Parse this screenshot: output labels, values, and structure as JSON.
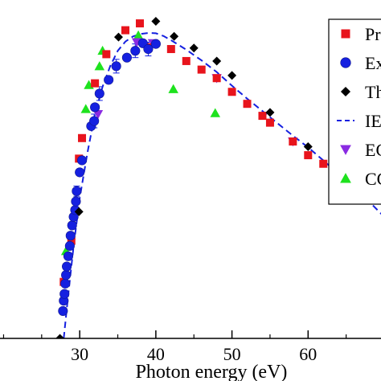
{
  "chart_data": {
    "type": "scatter",
    "xlabel": "Photon energy (eV)",
    "xlim": [
      19,
      70
    ],
    "ylim": [
      0,
      1.0
    ],
    "x_ticks": [
      30,
      40,
      50,
      60
    ],
    "grid": false,
    "legend_placement": "top-right",
    "series": [
      {
        "name": "Pr",
        "marker": "square",
        "color": "#e8141c",
        "points": [
          [
            27.9,
            0.165
          ],
          [
            28.9,
            0.285
          ],
          [
            29.9,
            0.525
          ],
          [
            30.3,
            0.585
          ],
          [
            32.0,
            0.745
          ],
          [
            33.5,
            0.83
          ],
          [
            36.0,
            0.9
          ],
          [
            37.9,
            0.92
          ],
          [
            39.0,
            0.85
          ],
          [
            42.0,
            0.845
          ],
          [
            44.0,
            0.81
          ],
          [
            46.0,
            0.785
          ],
          [
            48.0,
            0.76
          ],
          [
            50.0,
            0.72
          ],
          [
            52.0,
            0.685
          ],
          [
            54.0,
            0.65
          ],
          [
            55.0,
            0.63
          ],
          [
            58.0,
            0.575
          ],
          [
            60.0,
            0.535
          ],
          [
            62.0,
            0.51
          ]
        ]
      },
      {
        "name": "Ex",
        "marker": "circle",
        "color": "#1520e0",
        "points": [
          [
            27.8,
            0.08
          ],
          [
            27.9,
            0.11
          ],
          [
            28.0,
            0.13
          ],
          [
            28.1,
            0.16
          ],
          [
            28.2,
            0.185
          ],
          [
            28.3,
            0.21
          ],
          [
            28.5,
            0.24
          ],
          [
            28.7,
            0.27
          ],
          [
            28.8,
            0.3
          ],
          [
            29.0,
            0.33
          ],
          [
            29.2,
            0.355
          ],
          [
            29.4,
            0.375
          ],
          [
            29.5,
            0.4
          ],
          [
            29.6,
            0.43
          ],
          [
            30.0,
            0.485
          ],
          [
            30.3,
            0.52
          ],
          [
            31.5,
            0.62
          ],
          [
            31.9,
            0.635
          ],
          [
            32.0,
            0.675
          ],
          [
            32.6,
            0.715
          ],
          [
            33.8,
            0.755
          ],
          [
            34.8,
            0.795
          ],
          [
            36.2,
            0.82
          ],
          [
            37.3,
            0.84
          ],
          [
            38.3,
            0.862
          ],
          [
            39.0,
            0.845
          ],
          [
            40.0,
            0.86
          ]
        ]
      },
      {
        "name": "Th",
        "marker": "diamond",
        "color": "#000000",
        "points": [
          [
            27.4,
            0.0
          ],
          [
            29.9,
            0.37
          ],
          [
            35.1,
            0.88
          ],
          [
            40.0,
            0.926
          ],
          [
            42.4,
            0.882
          ],
          [
            45.0,
            0.848
          ],
          [
            48.0,
            0.81
          ],
          [
            50.0,
            0.768
          ],
          [
            55.0,
            0.66
          ],
          [
            60.0,
            0.56
          ]
        ]
      },
      {
        "name": "IE",
        "marker": "dashed-line",
        "color": "#1520e0",
        "points": [
          [
            27.9,
            0.0
          ],
          [
            28.5,
            0.13
          ],
          [
            29.2,
            0.27
          ],
          [
            30.0,
            0.41
          ],
          [
            31.0,
            0.54
          ],
          [
            32.0,
            0.655
          ],
          [
            33.0,
            0.735
          ],
          [
            34.0,
            0.795
          ],
          [
            35.0,
            0.84
          ],
          [
            36.0,
            0.867
          ],
          [
            37.0,
            0.882
          ],
          [
            38.0,
            0.889
          ],
          [
            39.0,
            0.892
          ],
          [
            40.0,
            0.891
          ],
          [
            41.0,
            0.883
          ],
          [
            42.0,
            0.871
          ],
          [
            44.0,
            0.843
          ],
          [
            46.0,
            0.812
          ],
          [
            48.0,
            0.778
          ],
          [
            50.0,
            0.738
          ],
          [
            52.0,
            0.7
          ],
          [
            54.0,
            0.664
          ],
          [
            56.0,
            0.628
          ],
          [
            58.0,
            0.592
          ],
          [
            60.0,
            0.558
          ],
          [
            62.0,
            0.52
          ],
          [
            64.0,
            0.48
          ],
          [
            66.0,
            0.44
          ],
          [
            68.0,
            0.4
          ],
          [
            70.0,
            0.355
          ]
        ]
      },
      {
        "name": "EC",
        "marker": "triangle-down",
        "color": "#8a2be2",
        "points": [
          [
            32.4,
            0.655
          ],
          [
            37.5,
            0.865
          ],
          [
            39.6,
            0.862
          ],
          [
            48.0,
            0.76
          ],
          [
            58.0,
            0.575
          ]
        ]
      },
      {
        "name": "CC",
        "marker": "triangle-up",
        "color": "#1ee21e",
        "points": [
          [
            28.2,
            0.255
          ],
          [
            30.8,
            0.67
          ],
          [
            31.2,
            0.74
          ],
          [
            32.6,
            0.795
          ],
          [
            33.0,
            0.84
          ],
          [
            37.7,
            0.885
          ],
          [
            42.3,
            0.728
          ],
          [
            47.8,
            0.658
          ]
        ]
      }
    ],
    "error_bars": [
      {
        "x": 29.6,
        "y": 0.43,
        "err": 0.015
      },
      {
        "x": 31.9,
        "y": 0.635,
        "err": 0.02
      },
      {
        "x": 32.6,
        "y": 0.715,
        "err": 0.02
      },
      {
        "x": 34.8,
        "y": 0.795,
        "err": 0.02
      },
      {
        "x": 37.3,
        "y": 0.84,
        "err": 0.02
      },
      {
        "x": 39.0,
        "y": 0.845,
        "err": 0.02
      }
    ]
  }
}
